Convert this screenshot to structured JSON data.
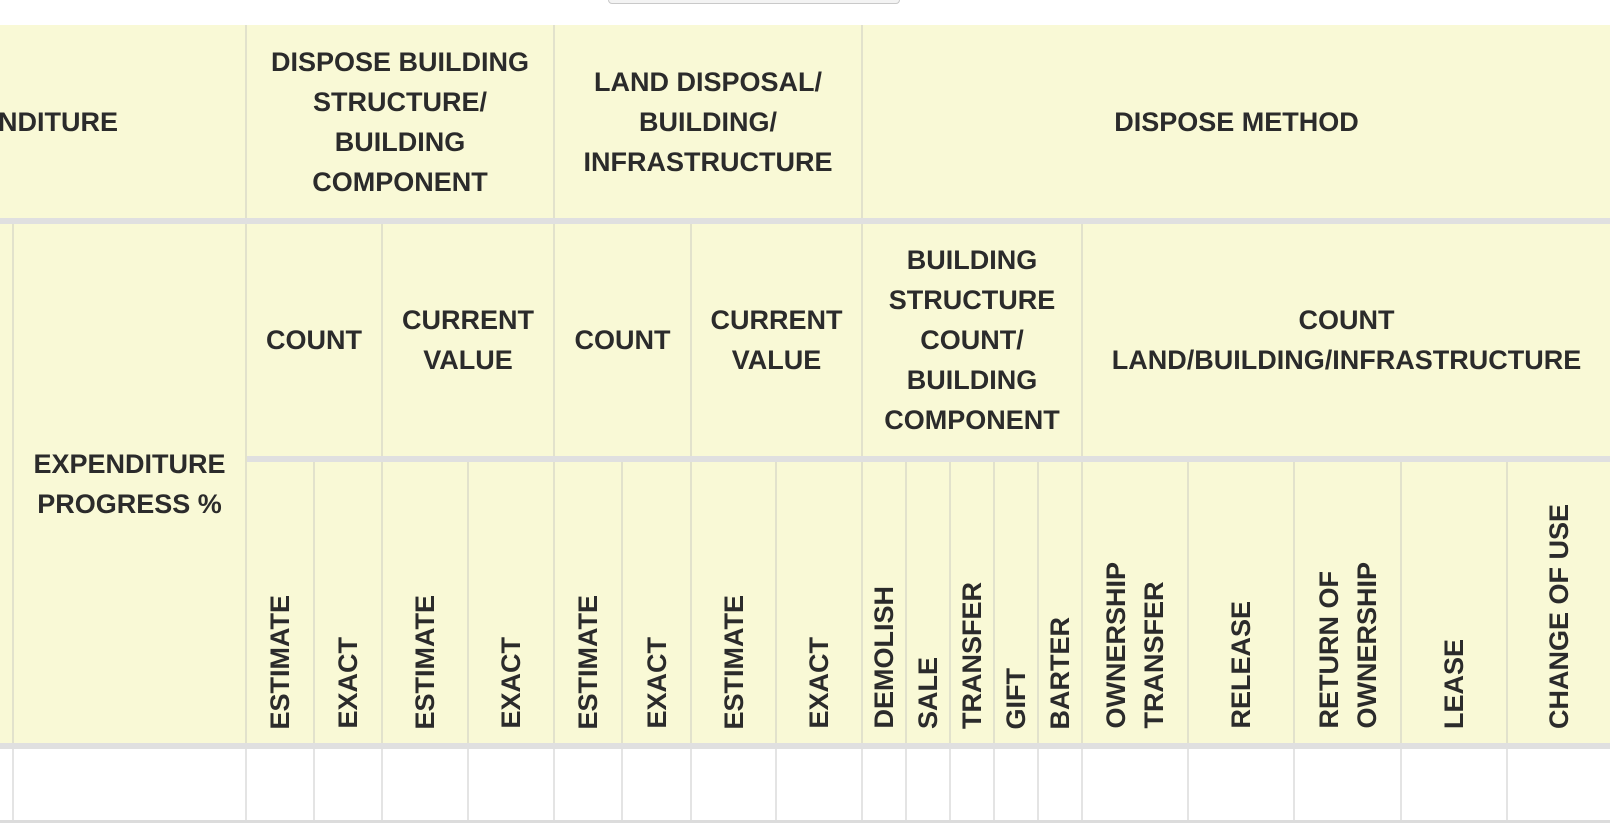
{
  "table": {
    "top_headers": {
      "expenditure_partial": "NDITURE",
      "dispose_building": "DISPOSE BUILDING STRUCTURE/ BUILDING COMPONENT",
      "land_disposal": "LAND DISPOSAL/ BUILDING/ INFRASTRUCTURE",
      "dispose_method": "DISPOSE METHOD"
    },
    "mid_headers": {
      "expenditure_progress": "EXPENDITURE PROGRESS %",
      "count_1": "COUNT",
      "current_value_1": "CURRENT VALUE",
      "count_2": "COUNT",
      "current_value_2": "CURRENT VALUE",
      "building_structure_count": "BUILDING STRUCTURE COUNT/ BUILDING COMPONENT",
      "count_land": "COUNT LAND/BUILDING/INFRASTRUCTURE"
    },
    "leaf_headers": [
      "ESTIMATE",
      "EXACT",
      "ESTIMATE",
      "EXACT",
      "ESTIMATE",
      "EXACT",
      "ESTIMATE",
      "EXACT",
      "DEMOLISH",
      "SALE",
      "TRANSFER",
      "GIFT",
      "BARTER",
      "OWNERSHIP\nTRANSFER",
      "RELEASE",
      "RETURN OF\nOWNERSHIP",
      "LEASE",
      "CHANGE OF USE"
    ],
    "colors": {
      "header_bg": "#f9f9d6",
      "divider": "#e0e0e0",
      "body_bg": "#ffffff"
    }
  }
}
